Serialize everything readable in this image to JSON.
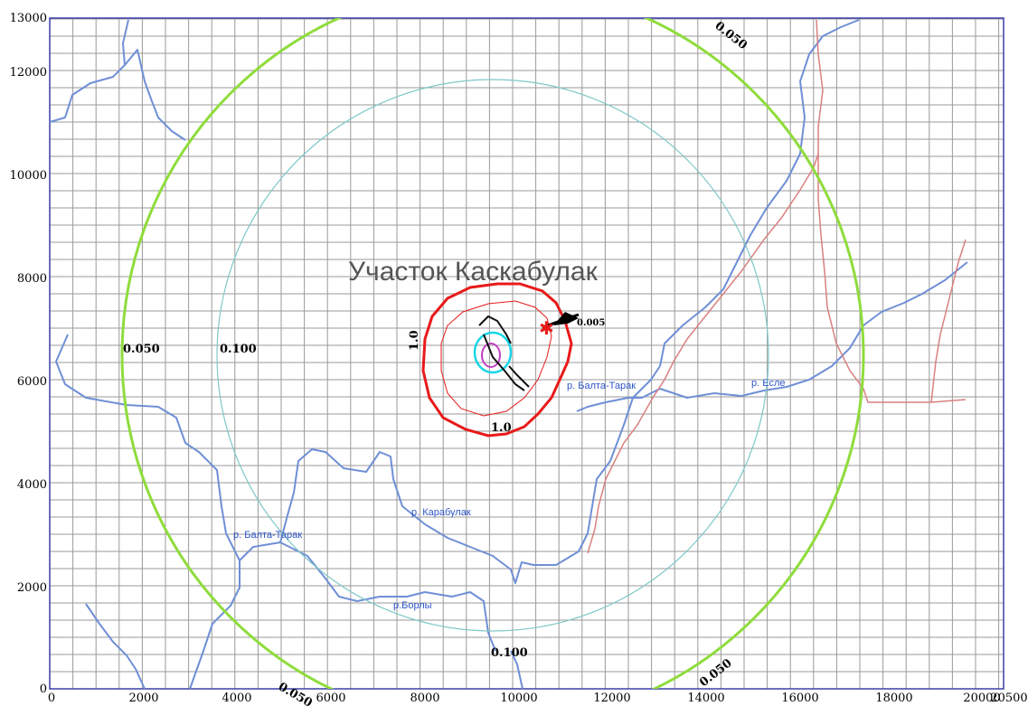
{
  "map": {
    "title": "Участок Каскабулак",
    "x_ticks": [
      "0",
      "2000",
      "4000",
      "6000",
      "8000",
      "10000",
      "12000",
      "14000",
      "16000",
      "18000",
      "20000",
      "20500"
    ],
    "y_ticks": [
      "13000",
      "12000",
      "10000",
      "8000",
      "6000",
      "4000",
      "2000",
      "0"
    ],
    "rivers": [
      {
        "name": "р. Балта-Тарак",
        "label": "р. Балта-Тарак"
      },
      {
        "name": "р. Балта-Тарак",
        "label": "р. Балта-Тарак"
      },
      {
        "name": "р. Есле",
        "label": "р. Есле"
      },
      {
        "name": "р. Карабулак",
        "label": "р. Карабулак"
      },
      {
        "name": "р.Борлы",
        "label": "р.Борлы"
      }
    ],
    "isolines": [
      {
        "value": "0.050",
        "label": "0.050"
      },
      {
        "value": "0.100",
        "label": "0.100"
      },
      {
        "value": "0.050",
        "label": "0.050"
      },
      {
        "value": "0.050",
        "label": "0.050"
      },
      {
        "value": "0.050",
        "label": "0.050"
      },
      {
        "value": "0.100",
        "label": "0.100"
      },
      {
        "value": "1.0",
        "label": "1.0"
      },
      {
        "value": "1.0",
        "label": "1.0"
      }
    ],
    "source_label": "0.005",
    "colors": {
      "grid": "#9a9a9a",
      "frame": "#3a3fa8",
      "river": "#6f8fd6",
      "isoline_outer": "#8fdc3c",
      "isoline_inner": "#7fc8c8",
      "isoline_red": "#e81a1a",
      "road": "#d98080",
      "center_cyan": "#19d6e6",
      "center_magenta": "#c040c0"
    }
  }
}
